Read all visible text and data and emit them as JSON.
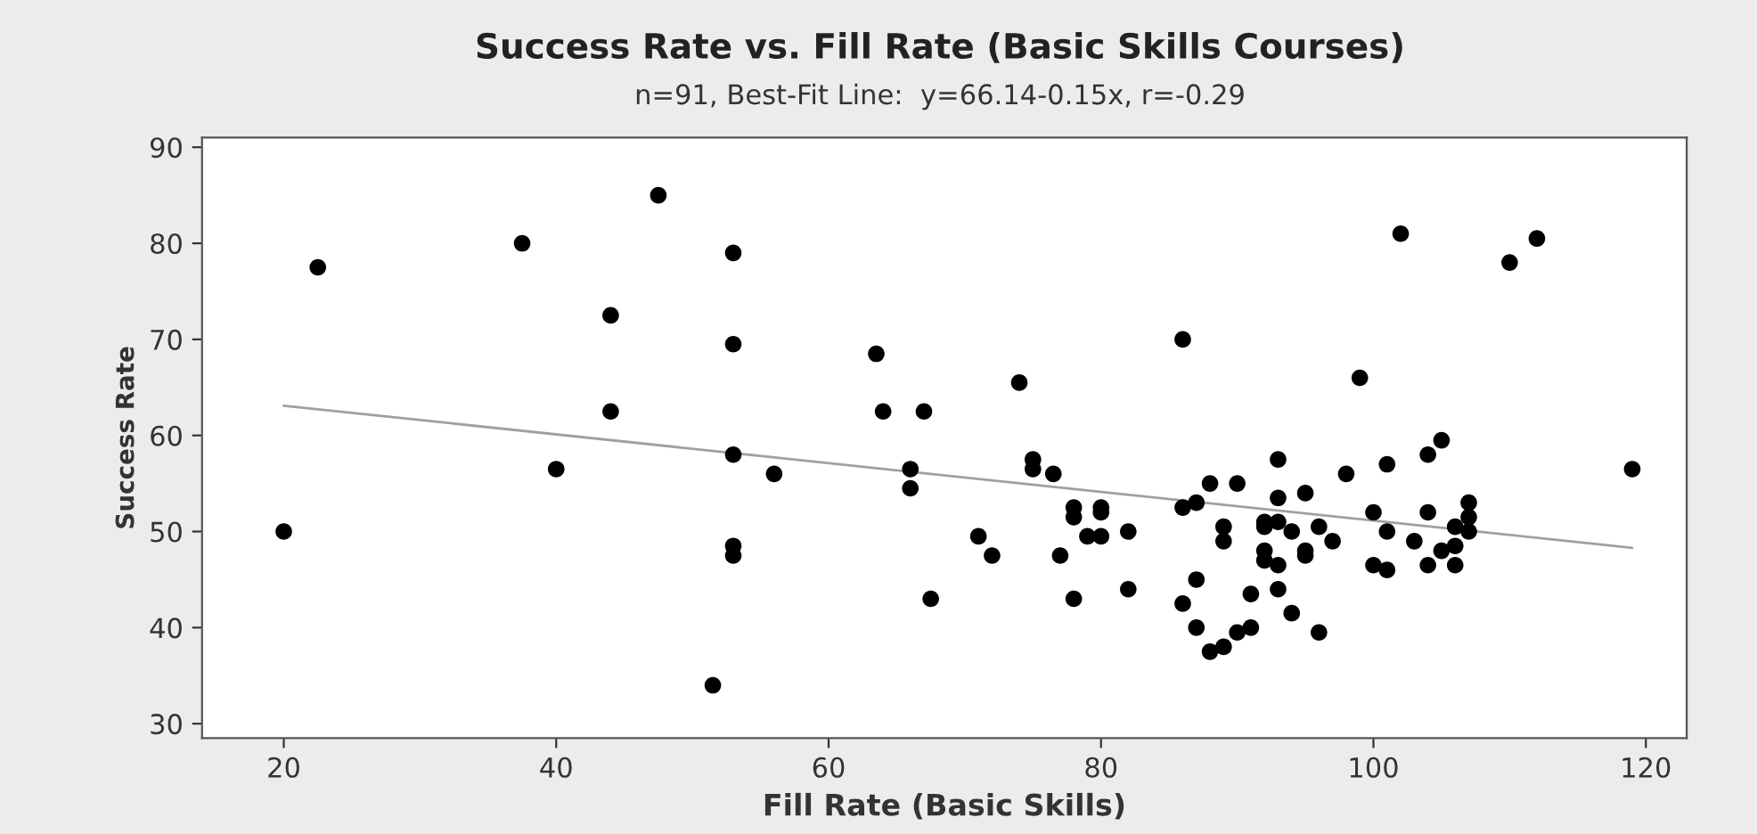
{
  "chart_data": {
    "type": "scatter",
    "title": "Success Rate vs. Fill Rate (Basic Skills Courses)",
    "subtitle": "n=91, Best-Fit Line:  y=66.14-0.15x, r=-0.29",
    "xlabel": "Fill Rate (Basic Skills)",
    "ylabel": "Success Rate",
    "xlim": [
      14,
      123
    ],
    "ylim": [
      28.5,
      91
    ],
    "xticks": [
      20,
      40,
      60,
      80,
      100,
      120
    ],
    "yticks": [
      30,
      40,
      50,
      60,
      70,
      80,
      90
    ],
    "grid": false,
    "legend": false,
    "marker": "circle",
    "series": [
      {
        "color": "#000000",
        "x": [
          20,
          22.5,
          37.5,
          40,
          44,
          44,
          47.5,
          51.5,
          53,
          53,
          53,
          53,
          53,
          56,
          63.5,
          64,
          66,
          66,
          67,
          67.5,
          71,
          72,
          74,
          75,
          75,
          76.5,
          77,
          78,
          78,
          78,
          79,
          80,
          80,
          80,
          82,
          82,
          86,
          86,
          86,
          87,
          87,
          87,
          88,
          88,
          89,
          89,
          89,
          90,
          90,
          91,
          91,
          92,
          92,
          92,
          92,
          93,
          93,
          93,
          93,
          93,
          94,
          94,
          95,
          95,
          95,
          96,
          96,
          97,
          98,
          99,
          100,
          100,
          101,
          101,
          101,
          102,
          103,
          104,
          104,
          104,
          105,
          105,
          106,
          106,
          106,
          107,
          107,
          107,
          110,
          112,
          119
        ],
        "values": [
          50,
          77.5,
          80,
          56.5,
          72.5,
          62.5,
          85,
          34,
          79,
          69.5,
          58,
          48.5,
          47.5,
          56,
          68.5,
          62.5,
          56.5,
          54.5,
          62.5,
          43,
          49.5,
          47.5,
          65.5,
          57.5,
          56.5,
          56,
          47.5,
          52.5,
          51.5,
          43,
          49.5,
          52.5,
          52,
          49.5,
          50,
          44,
          70,
          52.5,
          42.5,
          53,
          45,
          40,
          55,
          37.5,
          38,
          50.5,
          49,
          55,
          39.5,
          40,
          43.5,
          51,
          50.5,
          48,
          47,
          57.5,
          53.5,
          51,
          46.5,
          44,
          41.5,
          50,
          54,
          48,
          47.5,
          50.5,
          39.5,
          49,
          56,
          66,
          52,
          46.5,
          57,
          50,
          46,
          81,
          49,
          58,
          52,
          46.5,
          59.5,
          48,
          48.5,
          46.5,
          50.5,
          53,
          51.5,
          50,
          78,
          80.5,
          56.5
        ]
      },
      {
        "type": "line",
        "color": "#a0a0a0",
        "marker": "none",
        "line_style": "solid",
        "x": [
          20,
          119
        ],
        "values": [
          63.1,
          48.3
        ]
      }
    ]
  }
}
